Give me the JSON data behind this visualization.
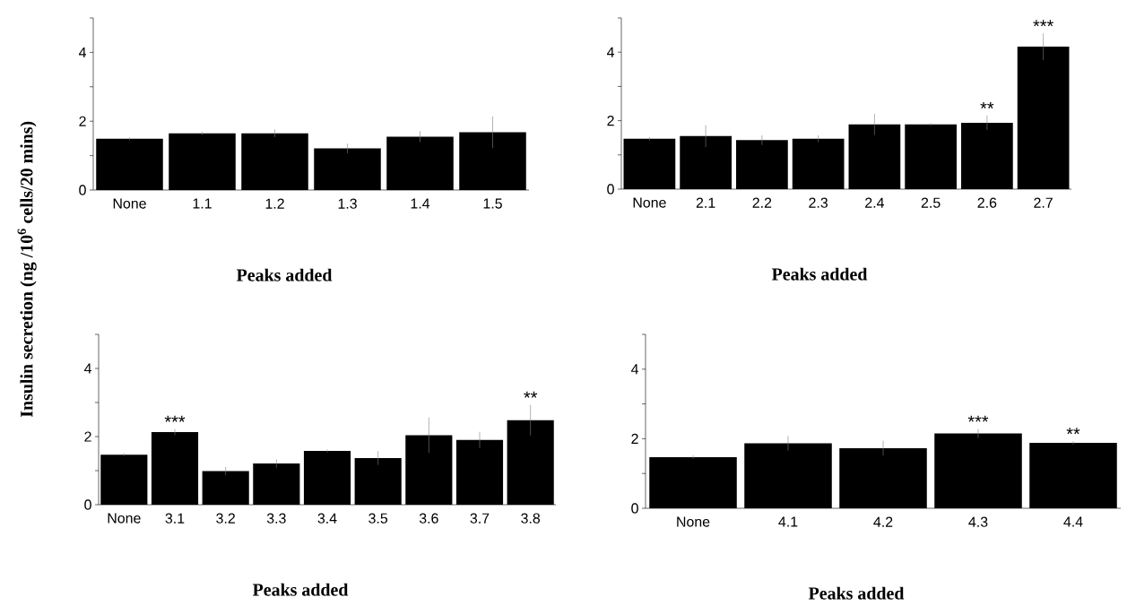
{
  "chart_data": [
    {
      "type": "bar",
      "categories": [
        "None",
        "1.1",
        "1.2",
        "1.3",
        "1.4",
        "1.5"
      ],
      "values": [
        1.49,
        1.65,
        1.65,
        1.21,
        1.55,
        1.68
      ],
      "errors": [
        0.04,
        0.04,
        0.11,
        0.14,
        0.16,
        0.46
      ],
      "color": "#000000",
      "ylim": [
        0,
        5
      ],
      "yticks": [
        0,
        {
          "value": 1,
          "label": null
        },
        2,
        {
          "value": 3,
          "label": null
        },
        4,
        {
          "value": 5,
          "label": null
        }
      ],
      "xlabel": "Peaks added",
      "ylabel": "Insulin secretion (ng /10$^{6}$ cells/20 mins)"
    },
    {
      "type": "bar",
      "categories": [
        "None",
        "2.1",
        "2.2",
        "2.3",
        "2.4",
        "2.5",
        "2.6",
        "2.7"
      ],
      "values": [
        1.47,
        1.55,
        1.43,
        1.47,
        1.89,
        1.89,
        1.94,
        4.16
      ],
      "errors": [
        0.05,
        0.32,
        0.14,
        0.1,
        0.31,
        0.04,
        0.21,
        0.39
      ],
      "color": "#000000",
      "ylim": [
        0,
        5
      ],
      "yticks": [
        0,
        {
          "value": 1,
          "label": null
        },
        2,
        {
          "value": 3,
          "label": null
        },
        4,
        {
          "value": 5,
          "label": null
        }
      ],
      "xlabel": "Peaks added",
      "annotations": [
        {
          "text": "**",
          "x": "2.6",
          "y": 2.15
        },
        {
          "text": "***",
          "x": "2.7",
          "y": 4.55
        }
      ]
    },
    {
      "type": "bar",
      "categories": [
        "None",
        "3.1",
        "3.2",
        "3.3",
        "3.4",
        "3.5",
        "3.6",
        "3.7",
        "3.8"
      ],
      "values": [
        1.47,
        2.13,
        0.99,
        1.21,
        1.58,
        1.37,
        2.04,
        1.9,
        2.48
      ],
      "errors": [
        0.04,
        0.09,
        0.12,
        0.12,
        0.04,
        0.2,
        0.52,
        0.24,
        0.45
      ],
      "color": "#000000",
      "ylim": [
        0,
        5
      ],
      "yticks": [
        0,
        {
          "value": 1,
          "label": null
        },
        2,
        {
          "value": 3,
          "label": null
        },
        4,
        {
          "value": 5,
          "label": null
        }
      ],
      "xlabel": "Peaks added",
      "annotations": [
        {
          "text": "***",
          "x": "3.1",
          "y": 2.22
        },
        {
          "text": "**",
          "x": "3.8",
          "y": 2.93
        }
      ]
    },
    {
      "type": "bar",
      "categories": [
        "None",
        "4.1",
        "4.2",
        "4.3",
        "4.4"
      ],
      "values": [
        1.47,
        1.87,
        1.73,
        2.15,
        1.88
      ],
      "errors": [
        0.05,
        0.21,
        0.21,
        0.13,
        0.05
      ],
      "color": "#000000",
      "ylim": [
        0,
        5
      ],
      "yticks": [
        0,
        {
          "value": 1,
          "label": null
        },
        2,
        {
          "value": 3,
          "label": null
        },
        4,
        {
          "value": 5,
          "label": null
        }
      ],
      "xlabel": "Peaks added",
      "annotations": [
        {
          "text": "***",
          "x": "4.3",
          "y": 2.28
        },
        {
          "text": "**",
          "x": "4.4",
          "y": 1.93
        }
      ]
    }
  ]
}
